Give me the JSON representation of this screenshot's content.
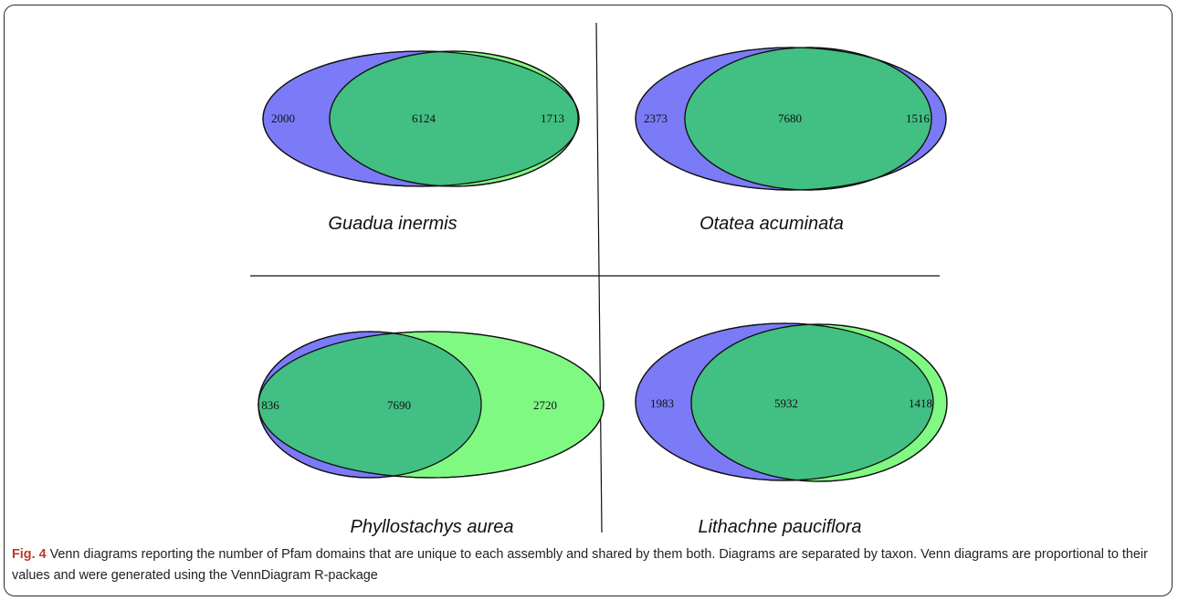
{
  "colors": {
    "set_a": "#7b7bf8",
    "set_b": "#80f983",
    "overlap": "#42bf82",
    "fig_label": "#c0392b"
  },
  "panels": [
    {
      "taxon": "Guadua inermis",
      "left_only": "2000",
      "shared": "6124",
      "right_only": "1713"
    },
    {
      "taxon": "Otatea acuminata",
      "left_only": "2373",
      "shared": "7680",
      "right_only": "1516"
    },
    {
      "taxon": "Phyllostachys aurea",
      "left_only": "836",
      "shared": "7690",
      "right_only": "2720"
    },
    {
      "taxon": "Lithachne pauciflora",
      "left_only": "1983",
      "shared": "5932",
      "right_only": "1418"
    }
  ],
  "caption": {
    "label": "Fig. 4",
    "text": " Venn diagrams reporting the number of Pfam domains that are unique to each assembly and shared by them both. Diagrams are separated by taxon. Venn diagrams are proportional to their values and were generated using the VennDiagram R-package"
  }
}
